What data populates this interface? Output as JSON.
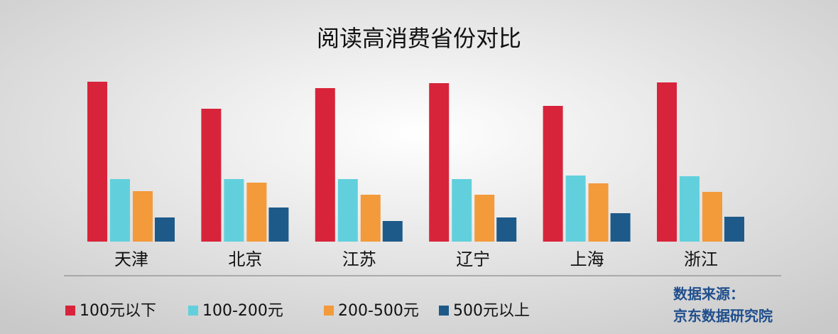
{
  "chart_data": {
    "type": "bar",
    "title": "阅读高消费省份对比",
    "categories": [
      "天津",
      "北京",
      "江苏",
      "辽宁",
      "上海",
      "浙江"
    ],
    "series": [
      {
        "name": "100元以下",
        "color": "#d8243a",
        "values": [
          225,
          187,
          216,
          223,
          191,
          224
        ]
      },
      {
        "name": "100-200元",
        "color": "#62d0dc",
        "values": [
          88,
          88,
          88,
          88,
          93,
          92
        ]
      },
      {
        "name": "200-500元",
        "color": "#f39a3b",
        "values": [
          71,
          83,
          66,
          66,
          82,
          70
        ]
      },
      {
        "name": "500元以上",
        "color": "#1d5a8a",
        "values": [
          34,
          48,
          29,
          34,
          40,
          35
        ]
      }
    ],
    "source_label": "数据来源：",
    "source": "京东数据研究院",
    "legend": "bottom-left"
  }
}
